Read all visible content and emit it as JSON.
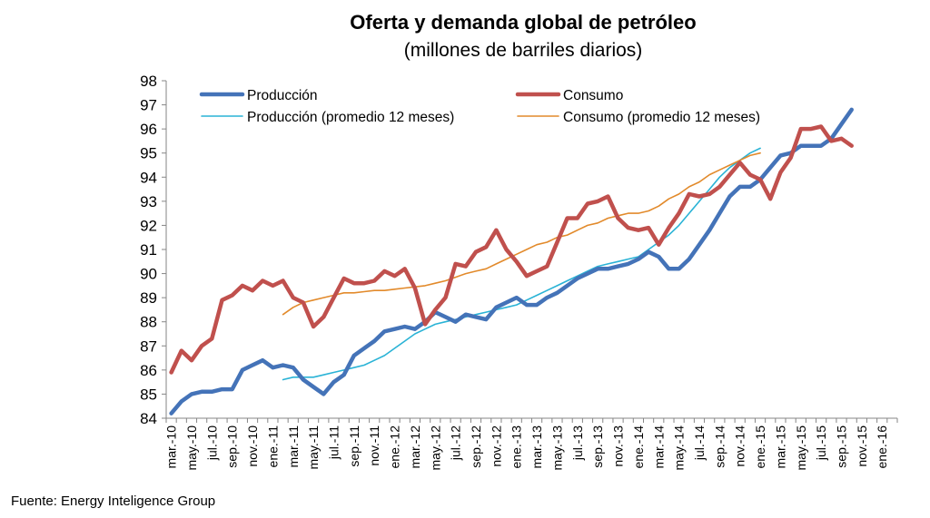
{
  "chart_data": {
    "type": "line",
    "title": "Oferta y demanda global de petróleo",
    "subtitle": "(millones de barriles diarios)",
    "ylim": [
      84,
      98
    ],
    "yticks": [
      "84",
      "85",
      "86",
      "87",
      "88",
      "89",
      "90",
      "91",
      "92",
      "93",
      "94",
      "95",
      "96",
      "97",
      "98"
    ],
    "xtick_labels": [
      "mar.-10",
      "may.-10",
      "jul.-10",
      "sep.-10",
      "nov.-10",
      "ene.-11",
      "mar.-11",
      "may.-11",
      "jul.-11",
      "sep.-11",
      "nov.-11",
      "ene.-12",
      "mar.-12",
      "may.-12",
      "jul.-12",
      "sep.-12",
      "nov.-12",
      "ene.-13",
      "mar.-13",
      "may.-13",
      "jul.-13",
      "sep.-13",
      "nov.-13",
      "ene.-14",
      "mar.-14",
      "may.-14",
      "jul.-14",
      "sep.-14",
      "nov.-14",
      "ene.-15",
      "mar.-15",
      "may.-15",
      "jul.-15",
      "sep.-15",
      "nov.-15",
      "ene.-16"
    ],
    "grid": false,
    "legend_position": "top",
    "series": [
      {
        "name": "Producción",
        "color": "#4473b8",
        "width": 4.5,
        "x_start_index": 0,
        "values": [
          84.2,
          84.7,
          85.0,
          85.1,
          85.1,
          85.2,
          85.2,
          86.0,
          86.2,
          86.4,
          86.1,
          86.2,
          86.1,
          85.6,
          85.3,
          85.0,
          85.5,
          85.8,
          86.6,
          86.9,
          87.2,
          87.6,
          87.7,
          87.8,
          87.7,
          88.0,
          88.4,
          88.2,
          88.0,
          88.3,
          88.2,
          88.1,
          88.6,
          88.8,
          89.0,
          88.7,
          88.7,
          89.0,
          89.2,
          89.5,
          89.8,
          90.0,
          90.2,
          90.2,
          90.3,
          90.4,
          90.6,
          90.9,
          90.7,
          90.2,
          90.2,
          90.6,
          91.2,
          91.8,
          92.5,
          93.2,
          93.6,
          93.6,
          93.9,
          94.4,
          94.9,
          95.0,
          95.3,
          95.3,
          95.3,
          95.6,
          96.2,
          96.8
        ]
      },
      {
        "name": "Consumo",
        "color": "#c0504d",
        "width": 4.5,
        "x_start_index": 0,
        "values": [
          85.9,
          86.8,
          86.4,
          87.0,
          87.3,
          88.9,
          89.1,
          89.5,
          89.3,
          89.7,
          89.5,
          89.7,
          89.0,
          88.8,
          87.8,
          88.2,
          89.0,
          89.8,
          89.6,
          89.6,
          89.7,
          90.1,
          89.9,
          90.2,
          89.4,
          87.9,
          88.5,
          89.0,
          90.4,
          90.3,
          90.9,
          91.1,
          91.8,
          91.0,
          90.5,
          89.9,
          90.1,
          90.3,
          91.3,
          92.3,
          92.3,
          92.9,
          93.0,
          93.2,
          92.3,
          91.9,
          91.8,
          91.9,
          91.2,
          91.9,
          92.5,
          93.3,
          93.2,
          93.3,
          93.6,
          94.1,
          94.6,
          94.1,
          93.9,
          93.1,
          94.2,
          94.8,
          96.0,
          96.0,
          96.1,
          95.5,
          95.6,
          95.3
        ]
      },
      {
        "name": "Producción (promedio 12 meses)",
        "color": "#2ab3d6",
        "width": 1.6,
        "x_start_index": 11,
        "values": [
          85.6,
          85.7,
          85.7,
          85.7,
          85.8,
          85.9,
          86.0,
          86.1,
          86.2,
          86.4,
          86.6,
          86.9,
          87.2,
          87.5,
          87.7,
          87.9,
          88.0,
          88.1,
          88.2,
          88.3,
          88.4,
          88.5,
          88.6,
          88.7,
          88.9,
          89.1,
          89.3,
          89.5,
          89.7,
          89.9,
          90.1,
          90.3,
          90.4,
          90.5,
          90.6,
          90.7,
          91.0,
          91.3,
          91.6,
          92.0,
          92.5,
          93.0,
          93.5,
          94.0,
          94.4,
          94.7,
          95.0,
          95.2
        ]
      },
      {
        "name": "Consumo (promedio 12 meses)",
        "color": "#e28a2b",
        "width": 1.6,
        "x_start_index": 11,
        "values": [
          88.3,
          88.6,
          88.8,
          88.9,
          89.0,
          89.1,
          89.2,
          89.2,
          89.25,
          89.3,
          89.3,
          89.35,
          89.4,
          89.45,
          89.5,
          89.6,
          89.7,
          89.85,
          90.0,
          90.1,
          90.2,
          90.4,
          90.6,
          90.8,
          91.0,
          91.2,
          91.3,
          91.5,
          91.6,
          91.8,
          92.0,
          92.1,
          92.3,
          92.4,
          92.5,
          92.5,
          92.6,
          92.8,
          93.1,
          93.3,
          93.6,
          93.8,
          94.1,
          94.3,
          94.5,
          94.7,
          94.9,
          95.0
        ]
      }
    ]
  },
  "source": "Fuente: Energy Inteligence Group"
}
